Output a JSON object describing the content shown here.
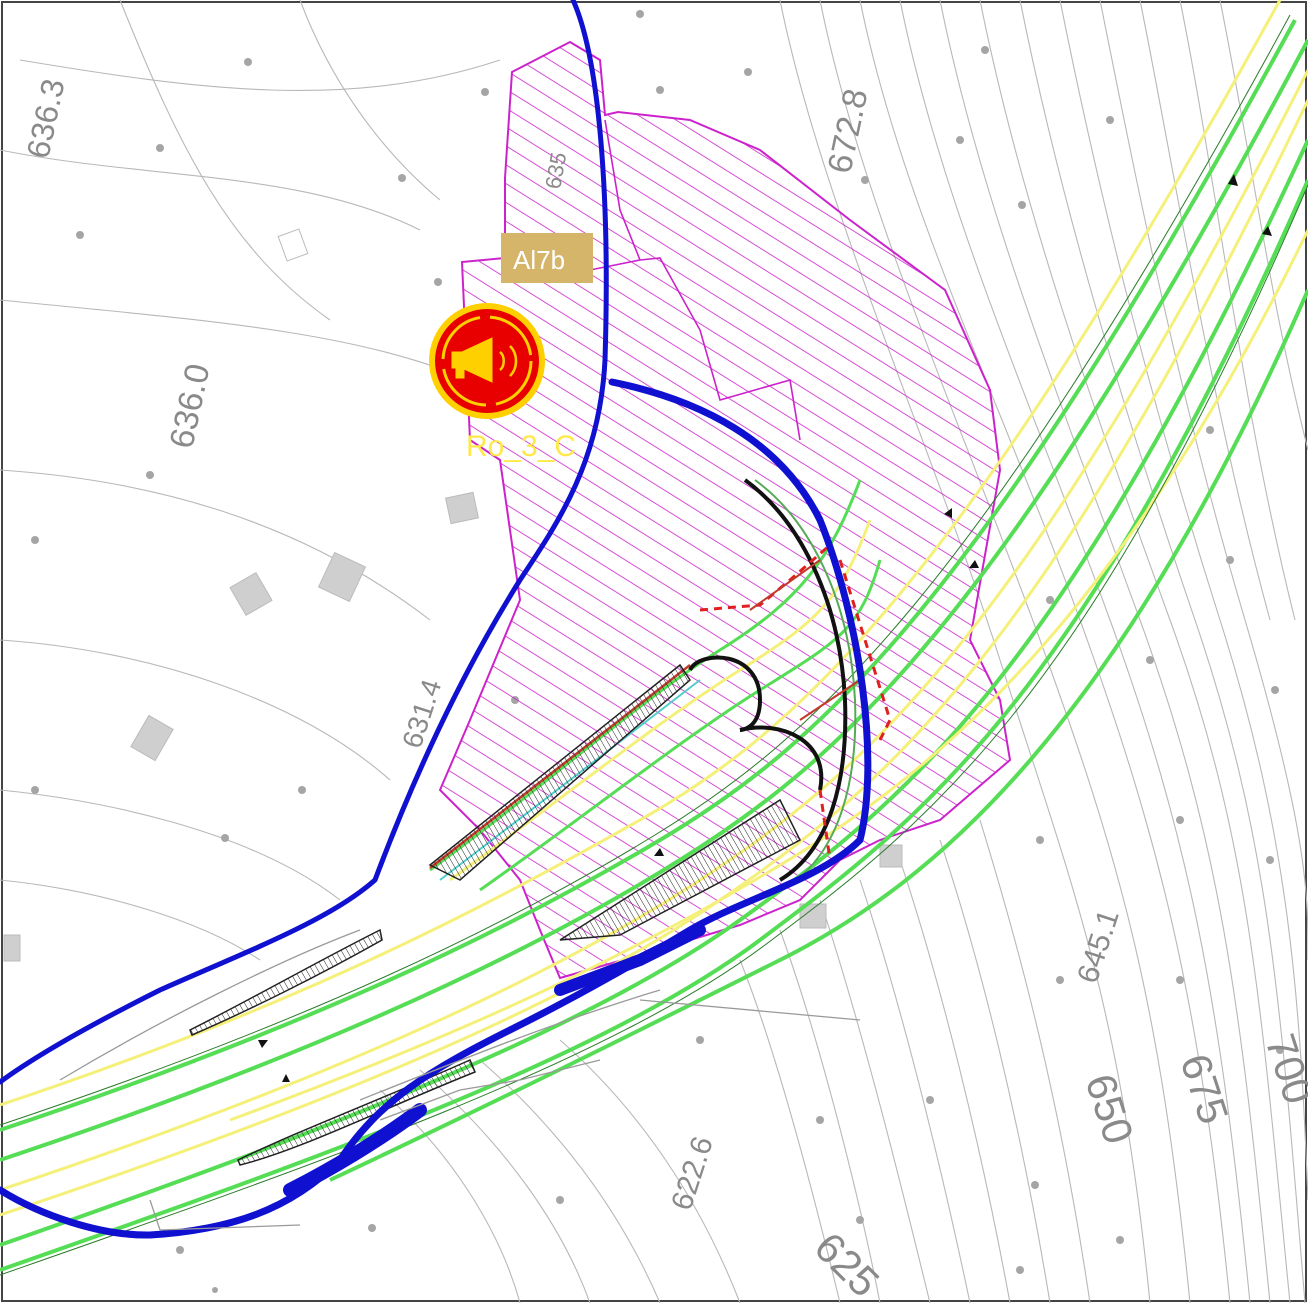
{
  "map": {
    "elevation_labels": [
      {
        "id": "elev-636-3",
        "text": "636.3"
      },
      {
        "id": "elev-636-0",
        "text": "636.0"
      },
      {
        "id": "elev-672-8",
        "text": "672.8"
      },
      {
        "id": "elev-631-4",
        "text": "631.4"
      },
      {
        "id": "elev-645-1",
        "text": "645.1"
      },
      {
        "id": "elev-622-6",
        "text": "622.6"
      },
      {
        "id": "elev-650",
        "text": "650"
      },
      {
        "id": "elev-675",
        "text": "675"
      },
      {
        "id": "elev-700",
        "text": "700"
      },
      {
        "id": "elev-625",
        "text": "625"
      },
      {
        "id": "elev-635",
        "text": "635"
      }
    ],
    "zone_label": "Al7b",
    "receptor_label": "Ro_3_C",
    "colors": {
      "road_outline": "#1010d0",
      "impact_zone": "#cc22cc",
      "lane_green": "#33dd33",
      "lane_yellow": "#f5f07a",
      "contour": "#b5b5b5",
      "receptor_fill": "#e80000",
      "receptor_ring": "#ffd000",
      "label_box": "#d4b56a"
    },
    "icons": [
      "megaphone-icon"
    ]
  }
}
